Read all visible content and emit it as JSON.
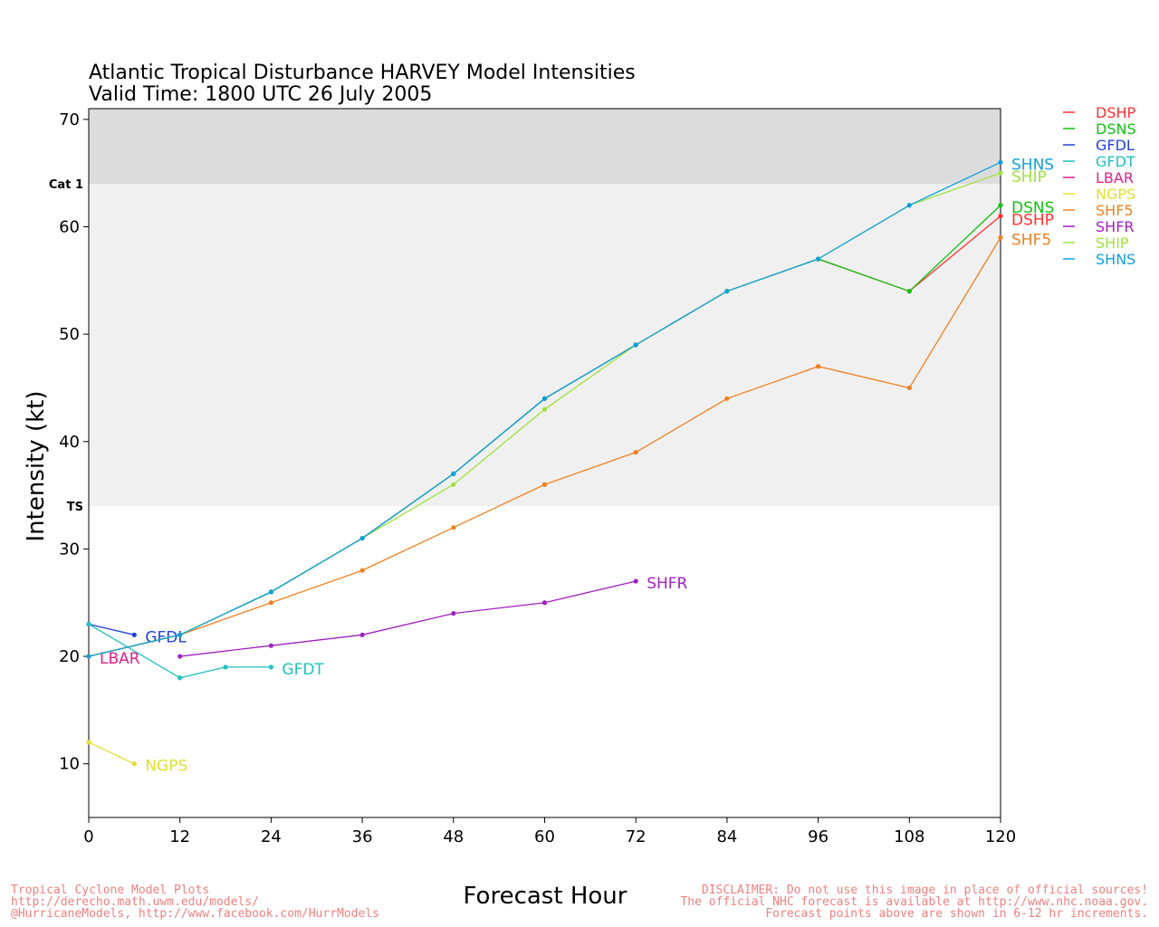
{
  "title_line1": "Atlantic Tropical Disturbance HARVEY Model Intensities",
  "title_line2": "Valid Time: 1800 UTC 26 July 2005",
  "footer_left": [
    "Tropical Cyclone Model Plots",
    "http://derecho.math.uwm.edu/models/",
    "@HurricaneModels, http://www.facebook.com/HurrModels"
  ],
  "footer_right": [
    "DISCLAIMER: Do not use this image in place of official sources!",
    "The official NHC forecast is available at http://www.nhc.noaa.gov.",
    "Forecast points above are shown in 6-12 hr increments."
  ],
  "colors": {
    "cat1_band": "#dcdcdc",
    "ts_band": "#f0f0f0",
    "footer": "#f08080"
  },
  "chart_data": {
    "type": "line",
    "xlabel": "Forecast Hour",
    "ylabel": "Intensity (kt)",
    "xlim": [
      0,
      120
    ],
    "ylim": [
      5,
      71
    ],
    "xticks": [
      0,
      12,
      24,
      36,
      48,
      60,
      72,
      84,
      96,
      108,
      120
    ],
    "yticks": [
      10,
      20,
      30,
      40,
      50,
      60,
      70
    ],
    "thresholds": [
      {
        "label": "TS",
        "value": 34
      },
      {
        "label": "Cat 1",
        "value": 64
      }
    ],
    "series": [
      {
        "name": "DSHP",
        "color": "#ff3030",
        "end_label": true,
        "x": [
          0,
          12,
          24,
          36,
          48,
          60,
          72,
          84,
          96,
          108,
          120
        ],
        "y": [
          20,
          22,
          26,
          31,
          37,
          44,
          49,
          54,
          57,
          54,
          61
        ]
      },
      {
        "name": "DSNS",
        "color": "#10c010",
        "end_label": true,
        "x": [
          0,
          12,
          24,
          36,
          48,
          60,
          72,
          84,
          96,
          108,
          120
        ],
        "y": [
          20,
          22,
          26,
          31,
          37,
          44,
          49,
          54,
          57,
          54,
          62
        ]
      },
      {
        "name": "GFDL",
        "color": "#2040e0",
        "end_label": true,
        "x": [
          0,
          6
        ],
        "y": [
          23,
          22
        ]
      },
      {
        "name": "GFDT",
        "color": "#20c0c0",
        "end_label": true,
        "x": [
          0,
          12,
          18,
          24
        ],
        "y": [
          23,
          18,
          19,
          19
        ]
      },
      {
        "name": "LBAR",
        "color": "#e0208a",
        "end_label": true,
        "x": [
          0
        ],
        "y": [
          20
        ]
      },
      {
        "name": "NGPS",
        "color": "#e0e030",
        "end_label": true,
        "x": [
          0,
          6
        ],
        "y": [
          12,
          10
        ]
      },
      {
        "name": "SHF5",
        "color": "#f08020",
        "end_label": true,
        "x": [
          0,
          12,
          24,
          36,
          48,
          60,
          72,
          84,
          96,
          108,
          120
        ],
        "y": [
          20,
          22,
          25,
          28,
          32,
          36,
          39,
          44,
          47,
          45,
          59
        ]
      },
      {
        "name": "SHFR",
        "color": "#a020c0",
        "end_label": true,
        "x": [
          12,
          24,
          36,
          48,
          60,
          72
        ],
        "y": [
          20,
          21,
          22,
          24,
          25,
          27
        ]
      },
      {
        "name": "SHIP",
        "color": "#a0e040",
        "end_label": true,
        "x": [
          0,
          12,
          24,
          36,
          48,
          60,
          72,
          84,
          96,
          108,
          120
        ],
        "y": [
          20,
          22,
          26,
          31,
          36,
          43,
          49,
          54,
          57,
          62,
          65
        ]
      },
      {
        "name": "SHNS",
        "color": "#10a0e0",
        "end_label": true,
        "x": [
          0,
          12,
          24,
          36,
          48,
          60,
          72,
          84,
          96,
          108,
          120
        ],
        "y": [
          20,
          22,
          26,
          31,
          37,
          44,
          49,
          54,
          57,
          62,
          66
        ]
      }
    ]
  }
}
